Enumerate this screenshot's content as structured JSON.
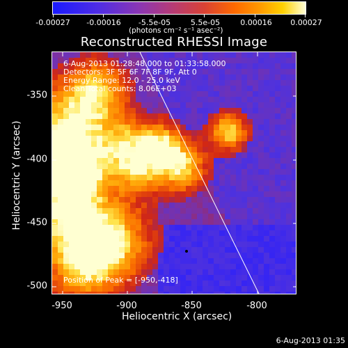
{
  "colorbar": {
    "tick_labels": [
      "-0.00027",
      "-0.00016",
      "-5.5e-05",
      "5.5e-05",
      "0.00016",
      "0.00027"
    ],
    "units_html_text": "(photons cm⁻² s⁻¹ asec⁻²)",
    "range": [
      -0.00027,
      0.00027
    ]
  },
  "title": "Reconstructed RHESSI Image",
  "annotations": {
    "time_range": "6-Aug-2013 01:28:48.000 to 01:33:58.000",
    "detectors": "Detectors: 3F 5F 6F 7F 8F 9F, Att 0",
    "energy": "Energy Range: 12.0 - 25.0 keV",
    "clean": "Clean    Total counts: 8.06E+03",
    "peak": "Position of Peak = [-950,-418]"
  },
  "axes": {
    "xlabel": "Heliocentric X (arcsec)",
    "ylabel": "Heliocentric Y (arcsec)",
    "x_ticks": [
      "-950",
      "-900",
      "-850",
      "-800"
    ],
    "x_tick_values": [
      -950,
      -900,
      -850,
      -800
    ],
    "y_ticks": [
      "-350",
      "-400",
      "-450",
      "-500"
    ],
    "y_tick_values": [
      -350,
      -400,
      -450,
      -500
    ],
    "xlim": [
      -962,
      -820
    ],
    "ylim": [
      -509,
      -327
    ]
  },
  "footer": "6-Aug-2013 01:35",
  "colors": {
    "background": "#000000",
    "limb_line": "#ffffff",
    "low": "#1a1aff",
    "high": "#ffffd8"
  }
}
